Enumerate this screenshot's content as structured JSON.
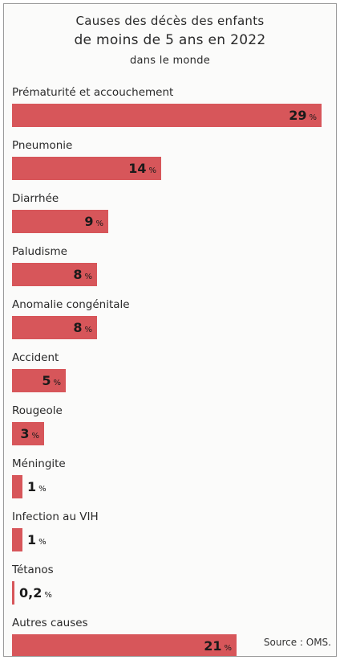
{
  "title_lines": [
    "Causes des décès des enfants",
    "de moins de 5 ans en 2022",
    "dans le monde"
  ],
  "source": "Source : OMS.",
  "colors": {
    "bar": "#d7565a",
    "background": "#fbfbfa"
  },
  "chart_data": {
    "type": "bar",
    "orientation": "horizontal",
    "title": "Causes des décès des enfants de moins de 5 ans en 2022 dans le monde",
    "unit": "%",
    "categories": [
      "Prématurité et accouchement",
      "Pneumonie",
      "Diarrhée",
      "Paludisme",
      "Anomalie congénitale",
      "Accident",
      "Rougeole",
      "Méningite",
      "Infection au VIH",
      "Tétanos",
      "Autres causes"
    ],
    "values": [
      29,
      14,
      9,
      8,
      8,
      5,
      3,
      1,
      1,
      0.2,
      21
    ],
    "value_labels": [
      "29",
      "14",
      "9",
      "8",
      "8",
      "5",
      "3",
      "1",
      "1",
      "0,2",
      "21"
    ],
    "xlim": [
      0,
      29
    ],
    "grid": false,
    "legend": "none"
  }
}
